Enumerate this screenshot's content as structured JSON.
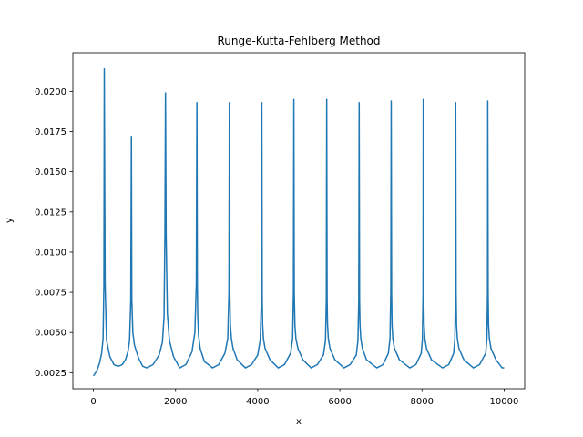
{
  "chart_data": {
    "type": "line",
    "title": "Runge-Kutta-Fehlberg Method",
    "xlabel": "x",
    "ylabel": "y",
    "xlim": [
      -500,
      10500
    ],
    "ylim": [
      0.0015,
      0.0224
    ],
    "x_ticks": [
      0,
      2000,
      4000,
      6000,
      8000,
      10000
    ],
    "x_tick_labels": [
      "0",
      "2000",
      "4000",
      "6000",
      "8000",
      "10000"
    ],
    "y_ticks": [
      0.0025,
      0.005,
      0.0075,
      0.01,
      0.0125,
      0.015,
      0.0175,
      0.02
    ],
    "y_tick_labels": [
      "0.0025",
      "0.0050",
      "0.0075",
      "0.0100",
      "0.0125",
      "0.0150",
      "0.0175",
      "0.0200"
    ],
    "grid": false,
    "series": [
      {
        "color": "#1f77b4",
        "x": [
          0,
          80,
          150,
          200,
          235,
          255,
          265,
          285,
          320,
          400,
          500,
          600,
          700,
          780,
          840,
          880,
          910,
          925,
          935,
          960,
          1000,
          1100,
          1200,
          1300,
          1450,
          1600,
          1680,
          1720,
          1740,
          1755,
          1770,
          1800,
          1850,
          1950,
          2100,
          2250,
          2400,
          2470,
          2505,
          2520,
          2530,
          2540,
          2560,
          2600,
          2700,
          2900,
          3050,
          3200,
          3270,
          3300,
          3310,
          3320,
          3335,
          3360,
          3400,
          3500,
          3700,
          3850,
          4000,
          4060,
          4090,
          4100,
          4110,
          4120,
          4140,
          4180,
          4300,
          4500,
          4650,
          4800,
          4850,
          4870,
          4880,
          4890,
          4905,
          4930,
          4980,
          5100,
          5300,
          5450,
          5600,
          5650,
          5670,
          5680,
          5690,
          5700,
          5720,
          5760,
          5880,
          6100,
          6250,
          6400,
          6440,
          6460,
          6470,
          6480,
          6490,
          6510,
          6550,
          6650,
          6900,
          7050,
          7180,
          7220,
          7240,
          7250,
          7260,
          7270,
          7290,
          7330,
          7450,
          7700,
          7850,
          7980,
          8010,
          8025,
          8030,
          8040,
          8050,
          8070,
          8110,
          8230,
          8500,
          8650,
          8770,
          8800,
          8815,
          8820,
          8830,
          8840,
          8860,
          8900,
          9020,
          9250,
          9400,
          9550,
          9580,
          9595,
          9600,
          9610,
          9620,
          9640,
          9680,
          9800,
          9950,
          10000
        ],
        "y": [
          0.0023,
          0.0026,
          0.0031,
          0.0037,
          0.0046,
          0.008,
          0.0214,
          0.008,
          0.0045,
          0.0035,
          0.003,
          0.0029,
          0.003,
          0.0033,
          0.0038,
          0.0045,
          0.007,
          0.0172,
          0.007,
          0.005,
          0.0042,
          0.0034,
          0.0029,
          0.0028,
          0.003,
          0.0036,
          0.0044,
          0.006,
          0.011,
          0.0199,
          0.011,
          0.0062,
          0.0045,
          0.0035,
          0.0028,
          0.003,
          0.0038,
          0.005,
          0.008,
          0.0193,
          0.008,
          0.006,
          0.0048,
          0.004,
          0.0032,
          0.0028,
          0.003,
          0.0037,
          0.0046,
          0.0075,
          0.0193,
          0.0075,
          0.0055,
          0.0046,
          0.004,
          0.0033,
          0.0028,
          0.003,
          0.0036,
          0.0045,
          0.007,
          0.0193,
          0.007,
          0.0055,
          0.0046,
          0.004,
          0.0033,
          0.0028,
          0.003,
          0.0037,
          0.0046,
          0.0075,
          0.0195,
          0.0075,
          0.0055,
          0.0046,
          0.004,
          0.0033,
          0.0028,
          0.003,
          0.0036,
          0.0045,
          0.007,
          0.0195,
          0.007,
          0.0055,
          0.0046,
          0.004,
          0.0033,
          0.0028,
          0.003,
          0.0036,
          0.0045,
          0.007,
          0.0193,
          0.007,
          0.0055,
          0.0046,
          0.004,
          0.0033,
          0.0028,
          0.003,
          0.0037,
          0.0046,
          0.0075,
          0.0194,
          0.0075,
          0.0055,
          0.0046,
          0.004,
          0.0033,
          0.0028,
          0.003,
          0.0037,
          0.0046,
          0.0075,
          0.0195,
          0.0075,
          0.0055,
          0.0046,
          0.004,
          0.0033,
          0.0028,
          0.003,
          0.0037,
          0.0046,
          0.0075,
          0.0193,
          0.0075,
          0.0055,
          0.0046,
          0.004,
          0.0033,
          0.0028,
          0.003,
          0.0037,
          0.0046,
          0.0075,
          0.0194,
          0.0075,
          0.0055,
          0.0046,
          0.004,
          0.0033,
          0.0028,
          0.0028
        ]
      }
    ]
  }
}
